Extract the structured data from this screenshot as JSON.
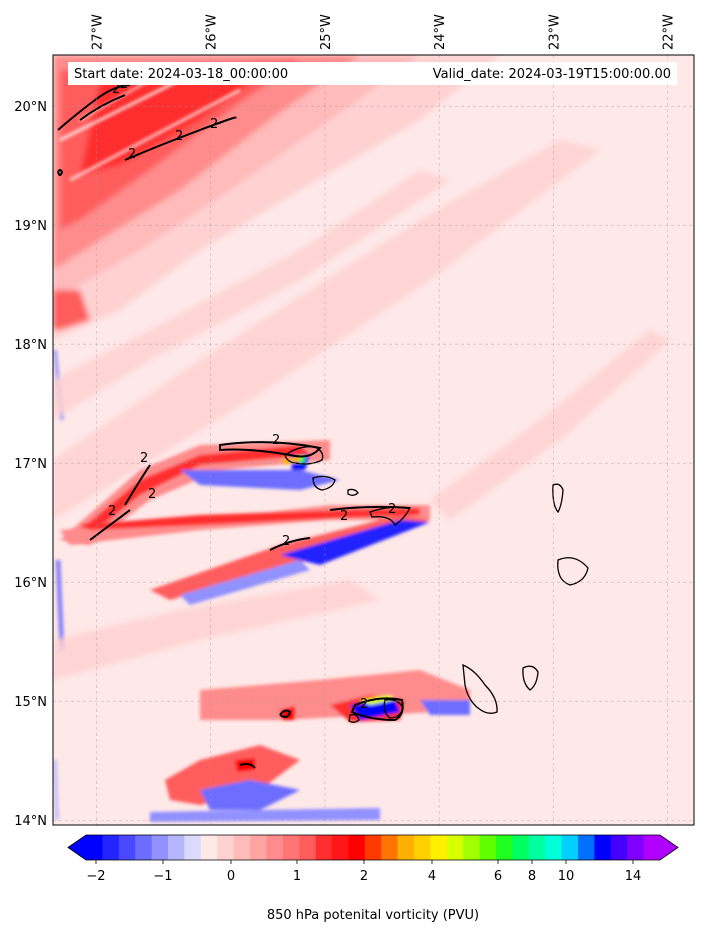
{
  "map": {
    "start_label": "Start date: 2024-03-18_00:00:00",
    "valid_label": "Valid_date: 2024-03-19T15:00:00.00",
    "lon_ticks": [
      {
        "value": -27,
        "label": "27°W"
      },
      {
        "value": -26,
        "label": "26°W"
      },
      {
        "value": -25,
        "label": "25°W"
      },
      {
        "value": -24,
        "label": "24°W"
      },
      {
        "value": -23,
        "label": "23°W"
      },
      {
        "value": -22,
        "label": "22°W"
      }
    ],
    "lat_ticks": [
      {
        "value": 20,
        "label": "20°N"
      },
      {
        "value": 19,
        "label": "19°N"
      },
      {
        "value": 18,
        "label": "18°N"
      },
      {
        "value": 17,
        "label": "17°N"
      },
      {
        "value": 16,
        "label": "16°N"
      },
      {
        "value": 15,
        "label": "15°N"
      },
      {
        "value": 14,
        "label": "14°N"
      }
    ],
    "extent": {
      "lon_min": -27.38,
      "lon_max": -21.77,
      "lat_min": 13.96,
      "lat_max": 20.43
    },
    "contour_label": "2",
    "contour_label_count": 13
  },
  "colorbar": {
    "label": "850 hPa potenital vorticity (PVU)",
    "tick_labels": [
      "−2",
      "−1",
      "0",
      "1",
      "2",
      "4",
      "6",
      "8",
      "10",
      "14"
    ],
    "colors": [
      "#0000ff",
      "#2424ff",
      "#4848ff",
      "#6d6dff",
      "#9191ff",
      "#b6b6ff",
      "#dadaff",
      "#ffe8e8",
      "#ffd1d1",
      "#ffbaba",
      "#ffa3a3",
      "#ff8c8c",
      "#ff7474",
      "#ff5d5d",
      "#ff2e2e",
      "#ff1717",
      "#ff0000",
      "#ff3a00",
      "#ff7500",
      "#ffb000",
      "#ffd000",
      "#fff000",
      "#d8ff00",
      "#a0ff00",
      "#60ff00",
      "#20ff20",
      "#00ff60",
      "#00ffa0",
      "#00ffd8",
      "#00d0ff",
      "#0070ff",
      "#0000ff",
      "#4400ff",
      "#8000ff",
      "#b000ff"
    ]
  }
}
